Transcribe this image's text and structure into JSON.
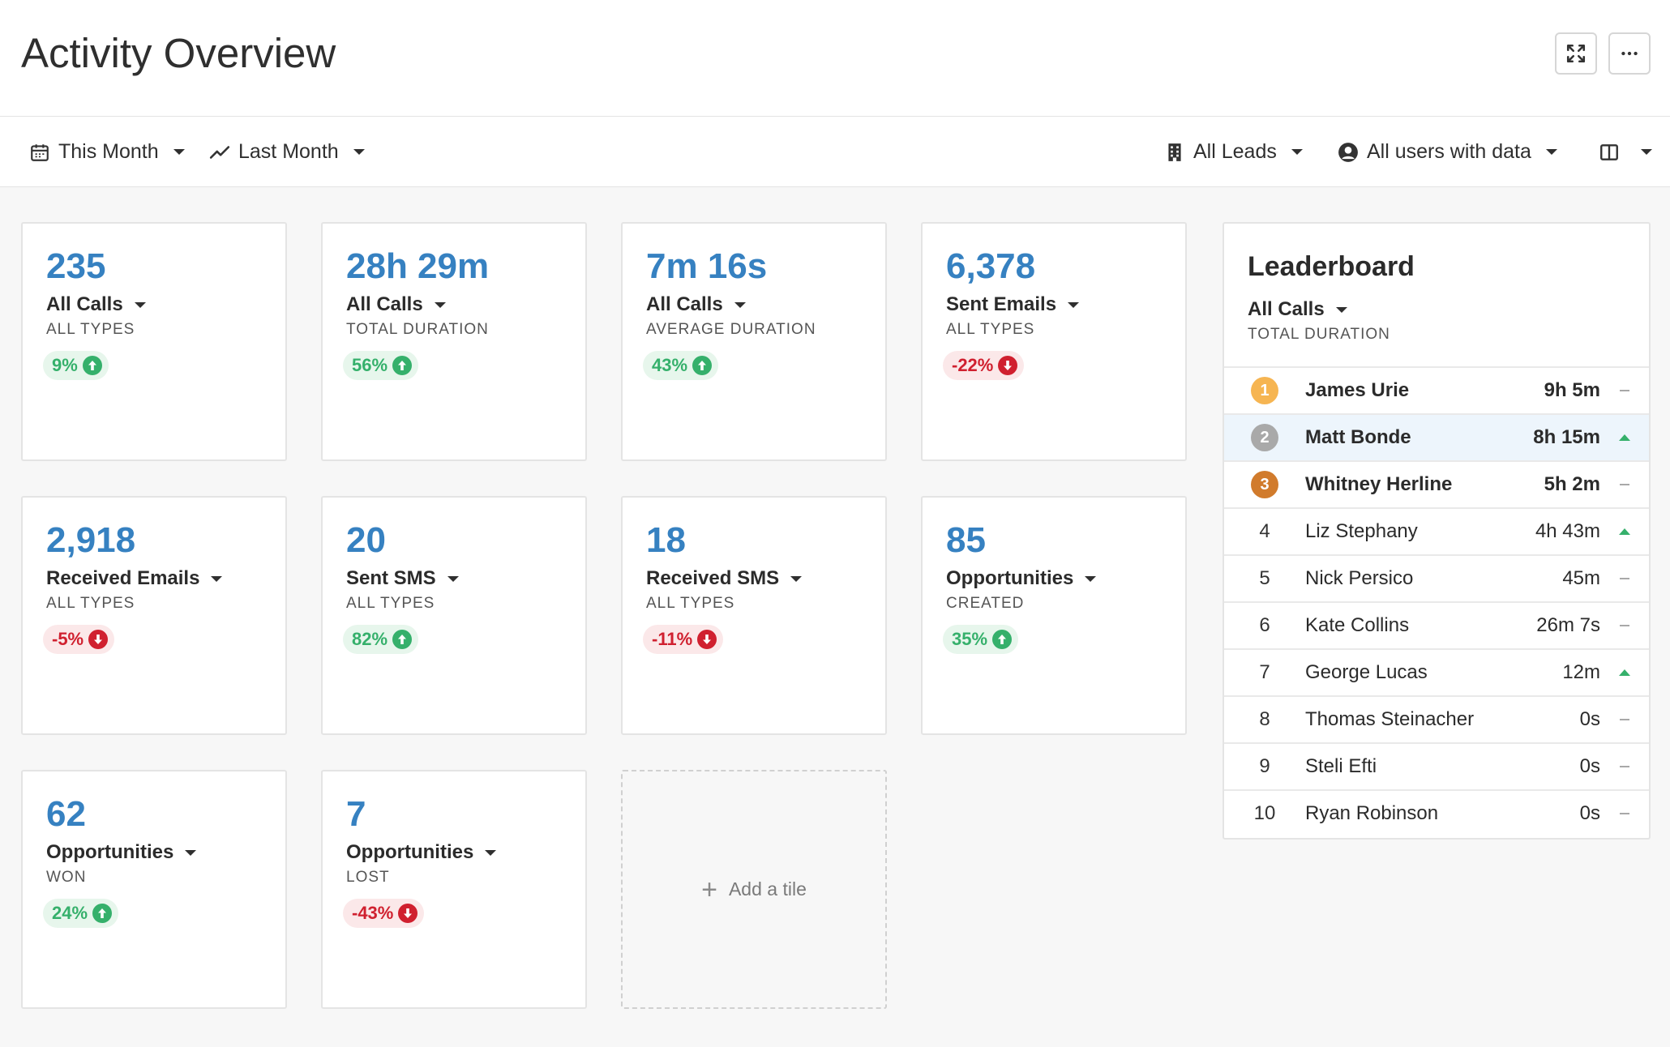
{
  "header": {
    "title": "Activity Overview"
  },
  "filters": {
    "period": "This Month",
    "compare": "Last Month",
    "leads": "All Leads",
    "users": "All users with data"
  },
  "tiles": [
    {
      "value": "235",
      "metric": "All Calls",
      "sub": "ALL TYPES",
      "change": "9%",
      "direction": "up"
    },
    {
      "value": "28h 29m",
      "metric": "All Calls",
      "sub": "TOTAL DURATION",
      "change": "56%",
      "direction": "up"
    },
    {
      "value": "7m 16s",
      "metric": "All Calls",
      "sub": "AVERAGE DURATION",
      "change": "43%",
      "direction": "up"
    },
    {
      "value": "6,378",
      "metric": "Sent Emails",
      "sub": "ALL TYPES",
      "change": "-22%",
      "direction": "down"
    },
    {
      "value": "2,918",
      "metric": "Received Emails",
      "sub": "ALL TYPES",
      "change": "-5%",
      "direction": "down"
    },
    {
      "value": "20",
      "metric": "Sent SMS",
      "sub": "ALL TYPES",
      "change": "82%",
      "direction": "up"
    },
    {
      "value": "18",
      "metric": "Received SMS",
      "sub": "ALL TYPES",
      "change": "-11%",
      "direction": "down"
    },
    {
      "value": "85",
      "metric": "Opportunities",
      "sub": "CREATED",
      "change": "35%",
      "direction": "up"
    },
    {
      "value": "62",
      "metric": "Opportunities",
      "sub": "WON",
      "change": "24%",
      "direction": "up"
    },
    {
      "value": "7",
      "metric": "Opportunities",
      "sub": "LOST",
      "change": "-43%",
      "direction": "down"
    }
  ],
  "add_tile": {
    "label": "Add a tile"
  },
  "leaderboard": {
    "title": "Leaderboard",
    "metric": "All Calls",
    "sub": "TOTAL DURATION",
    "rows": [
      {
        "rank": "1",
        "name": "James Urie",
        "value": "9h 5m",
        "trend": "flat"
      },
      {
        "rank": "2",
        "name": "Matt Bonde",
        "value": "8h 15m",
        "trend": "up"
      },
      {
        "rank": "3",
        "name": "Whitney Herline",
        "value": "5h 2m",
        "trend": "flat"
      },
      {
        "rank": "4",
        "name": "Liz Stephany",
        "value": "4h 43m",
        "trend": "up"
      },
      {
        "rank": "5",
        "name": "Nick Persico",
        "value": "45m",
        "trend": "flat"
      },
      {
        "rank": "6",
        "name": "Kate Collins",
        "value": "26m 7s",
        "trend": "flat"
      },
      {
        "rank": "7",
        "name": "George Lucas",
        "value": "12m",
        "trend": "up"
      },
      {
        "rank": "8",
        "name": "Thomas Steinacher",
        "value": "0s",
        "trend": "flat"
      },
      {
        "rank": "9",
        "name": "Steli Efti",
        "value": "0s",
        "trend": "flat"
      },
      {
        "rank": "10",
        "name": "Ryan Robinson",
        "value": "0s",
        "trend": "flat"
      }
    ]
  },
  "colors": {
    "accent": "#3681c1",
    "positive": "#35b06b",
    "negative": "#d0202f",
    "gold": "#f6b552",
    "silver": "#a9a9a9",
    "bronze": "#d17b2c",
    "highlight_row": "#edf5fc"
  },
  "icons": {
    "expand": "expand-icon",
    "more": "more-icon",
    "calendar": "calendar-icon",
    "trend": "trend-line-icon",
    "building": "building-icon",
    "user": "user-circle-icon",
    "columns": "columns-icon",
    "add": "plus-icon"
  }
}
